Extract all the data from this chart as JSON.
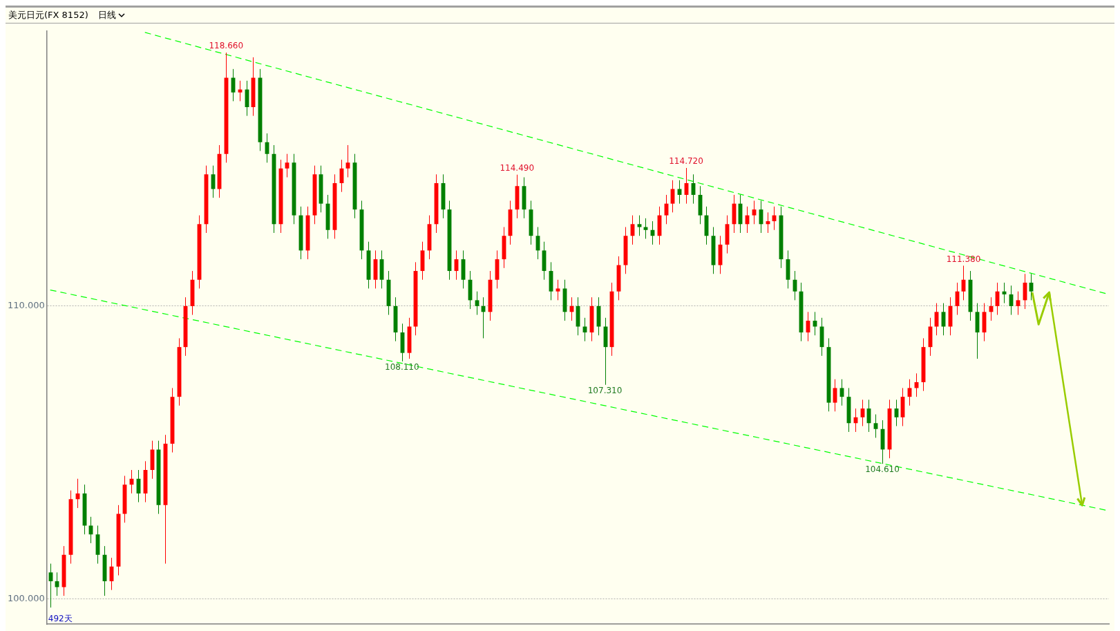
{
  "chart_data": {
    "type": "candlestick",
    "title": "美元日元(FX 8152)",
    "subtitle": "日线",
    "annotations": [
      {
        "text": "118.660",
        "y": 118.66
      },
      {
        "text": "114.490",
        "y": 114.49
      },
      {
        "text": "114.720",
        "y": 114.72
      },
      {
        "text": "111.380",
        "y": 111.38
      },
      {
        "text": "108.110",
        "y": 108.11
      },
      {
        "text": "107.310",
        "y": 107.31
      },
      {
        "text": "104.610",
        "y": 104.61
      },
      "492天"
    ],
    "categories": [
      null,
      null,
      null,
      null,
      null,
      null,
      null,
      null,
      null,
      null,
      null,
      null,
      null,
      null,
      null,
      null,
      null,
      null,
      null,
      null,
      null,
      null,
      null,
      null,
      null,
      null,
      null,
      null,
      null,
      null,
      null,
      null,
      null,
      null,
      null,
      null,
      null,
      null,
      null,
      null,
      null,
      null,
      null,
      null,
      null,
      null,
      null,
      null,
      null,
      null,
      null,
      null,
      null,
      null,
      null,
      null,
      null,
      null,
      null,
      null,
      null,
      null,
      null,
      null,
      null,
      null,
      null,
      null,
      null,
      null,
      null,
      null,
      null,
      null,
      null,
      null,
      null,
      null,
      null,
      null,
      null,
      null,
      null,
      null,
      null,
      null,
      null,
      null,
      null,
      null,
      null,
      null,
      null,
      null,
      null,
      null,
      null,
      null,
      null,
      null,
      null,
      null,
      null,
      null,
      null,
      null,
      null,
      null,
      null,
      null,
      null,
      null,
      null,
      null,
      null,
      null,
      null,
      null,
      null,
      null,
      null,
      null,
      null,
      null,
      null,
      null,
      null,
      null,
      null,
      null,
      null,
      null,
      null,
      null,
      null,
      null,
      null,
      null,
      null,
      null,
      null,
      null,
      null,
      null,
      null,
      null,
      null,
      null,
      null,
      null,
      null,
      null,
      null,
      null,
      null,
      null,
      null
    ],
    "ohlc": [
      [
        100.9,
        101.2,
        99.7,
        100.6
      ],
      [
        100.6,
        100.9,
        100.1,
        100.4
      ],
      [
        100.4,
        101.8,
        100.1,
        101.5
      ],
      [
        101.5,
        103.7,
        101.2,
        103.4
      ],
      [
        103.4,
        104.1,
        103.1,
        103.6
      ],
      [
        103.6,
        103.9,
        102.2,
        102.5
      ],
      [
        102.5,
        102.8,
        101.9,
        102.2
      ],
      [
        102.2,
        102.5,
        101.2,
        101.5
      ],
      [
        101.5,
        101.8,
        100.1,
        100.6
      ],
      [
        100.6,
        101.4,
        100.3,
        101.1
      ],
      [
        101.1,
        103.2,
        100.8,
        102.9
      ],
      [
        102.9,
        104.2,
        102.6,
        103.9
      ],
      [
        103.9,
        104.4,
        103.6,
        104.1
      ],
      [
        104.1,
        104.4,
        103.3,
        103.6
      ],
      [
        103.6,
        104.7,
        103.3,
        104.4
      ],
      [
        104.4,
        105.4,
        104.1,
        105.1
      ],
      [
        105.1,
        105.4,
        102.9,
        103.2
      ],
      [
        103.2,
        105.6,
        101.2,
        105.3
      ],
      [
        105.3,
        107.2,
        105.0,
        106.9
      ],
      [
        106.9,
        108.9,
        106.6,
        108.6
      ],
      [
        108.6,
        110.3,
        108.3,
        110.0
      ],
      [
        110.0,
        111.2,
        109.7,
        110.9
      ],
      [
        110.9,
        113.1,
        110.6,
        112.8
      ],
      [
        112.8,
        114.8,
        112.5,
        114.5
      ],
      [
        114.5,
        114.8,
        113.7,
        114.0
      ],
      [
        114.0,
        115.5,
        113.7,
        115.2
      ],
      [
        115.2,
        118.66,
        114.9,
        117.8
      ],
      [
        117.8,
        118.1,
        117.0,
        117.3
      ],
      [
        117.3,
        117.7,
        117.0,
        117.4
      ],
      [
        117.4,
        117.7,
        116.5,
        116.8
      ],
      [
        116.8,
        118.5,
        116.5,
        117.8
      ],
      [
        117.8,
        118.1,
        115.3,
        115.6
      ],
      [
        115.6,
        115.9,
        114.9,
        115.2
      ],
      [
        115.2,
        115.5,
        112.5,
        112.8
      ],
      [
        112.8,
        115.0,
        112.5,
        114.7
      ],
      [
        114.7,
        115.2,
        114.4,
        114.9
      ],
      [
        114.9,
        115.2,
        112.8,
        113.1
      ],
      [
        113.1,
        113.4,
        111.6,
        111.9
      ],
      [
        111.9,
        113.4,
        111.6,
        113.1
      ],
      [
        113.1,
        114.8,
        112.8,
        114.5
      ],
      [
        114.5,
        114.8,
        113.2,
        113.5
      ],
      [
        113.5,
        113.8,
        112.3,
        112.6
      ],
      [
        112.6,
        114.5,
        112.3,
        114.2
      ],
      [
        114.2,
        115.0,
        113.9,
        114.7
      ],
      [
        114.7,
        115.5,
        114.4,
        114.9
      ],
      [
        114.9,
        115.2,
        113.0,
        113.3
      ],
      [
        113.3,
        113.6,
        111.6,
        111.9
      ],
      [
        111.9,
        112.2,
        110.6,
        110.9
      ],
      [
        110.9,
        111.9,
        110.6,
        111.6
      ],
      [
        111.6,
        111.9,
        110.6,
        110.9
      ],
      [
        110.9,
        111.2,
        109.7,
        110.0
      ],
      [
        110.0,
        110.3,
        108.8,
        109.1
      ],
      [
        109.1,
        109.4,
        108.11,
        108.4
      ],
      [
        108.4,
        109.6,
        108.2,
        109.3
      ],
      [
        109.3,
        111.5,
        109.0,
        111.2
      ],
      [
        111.2,
        112.2,
        110.9,
        111.9
      ],
      [
        111.9,
        113.1,
        111.6,
        112.8
      ],
      [
        112.8,
        114.5,
        112.5,
        114.2
      ],
      [
        114.2,
        114.5,
        113.0,
        113.3
      ],
      [
        113.3,
        113.6,
        110.9,
        111.2
      ],
      [
        111.2,
        111.9,
        110.9,
        111.6
      ],
      [
        111.6,
        111.9,
        110.6,
        110.9
      ],
      [
        110.9,
        111.2,
        109.9,
        110.2
      ],
      [
        110.2,
        110.5,
        109.7,
        110.0
      ],
      [
        110.0,
        110.3,
        108.9,
        109.8
      ],
      [
        109.8,
        111.2,
        109.5,
        110.9
      ],
      [
        110.9,
        111.9,
        110.6,
        111.6
      ],
      [
        111.6,
        112.7,
        111.3,
        112.4
      ],
      [
        112.4,
        113.6,
        112.1,
        113.3
      ],
      [
        113.3,
        114.49,
        113.0,
        114.1
      ],
      [
        114.1,
        114.4,
        113.0,
        113.3
      ],
      [
        113.3,
        113.6,
        112.1,
        112.4
      ],
      [
        112.4,
        112.7,
        111.6,
        111.9
      ],
      [
        111.9,
        112.2,
        110.9,
        111.2
      ],
      [
        111.2,
        111.5,
        110.2,
        110.5
      ],
      [
        110.5,
        110.9,
        110.2,
        110.6
      ],
      [
        110.6,
        110.9,
        109.5,
        109.8
      ],
      [
        109.8,
        110.3,
        109.5,
        110.0
      ],
      [
        110.0,
        110.3,
        109.0,
        109.3
      ],
      [
        109.3,
        109.6,
        108.8,
        109.1
      ],
      [
        109.1,
        110.3,
        108.8,
        110.0
      ],
      [
        110.0,
        110.3,
        109.0,
        109.3
      ],
      [
        109.3,
        109.6,
        107.31,
        108.6
      ],
      [
        108.6,
        110.8,
        108.3,
        110.5
      ],
      [
        110.5,
        111.7,
        110.2,
        111.4
      ],
      [
        111.4,
        112.7,
        111.1,
        112.4
      ],
      [
        112.4,
        113.1,
        112.1,
        112.8
      ],
      [
        112.8,
        113.1,
        112.4,
        112.7
      ],
      [
        112.7,
        113.0,
        112.3,
        112.6
      ],
      [
        112.6,
        112.9,
        112.1,
        112.4
      ],
      [
        112.4,
        113.4,
        112.1,
        113.1
      ],
      [
        113.1,
        113.8,
        112.8,
        113.5
      ],
      [
        113.5,
        114.3,
        113.2,
        114.0
      ],
      [
        114.0,
        114.3,
        113.5,
        113.8
      ],
      [
        113.8,
        114.72,
        113.5,
        114.2
      ],
      [
        114.2,
        114.5,
        113.5,
        113.8
      ],
      [
        113.8,
        114.1,
        112.8,
        113.1
      ],
      [
        113.1,
        113.4,
        112.1,
        112.4
      ],
      [
        112.4,
        112.7,
        111.1,
        111.4
      ],
      [
        111.4,
        112.4,
        111.1,
        112.1
      ],
      [
        112.1,
        113.1,
        111.8,
        112.8
      ],
      [
        112.8,
        113.8,
        112.5,
        113.5
      ],
      [
        113.5,
        113.8,
        112.5,
        112.8
      ],
      [
        112.8,
        113.4,
        112.5,
        113.1
      ],
      [
        113.1,
        113.6,
        112.8,
        113.3
      ],
      [
        113.3,
        113.6,
        112.5,
        112.8
      ],
      [
        112.8,
        113.2,
        112.5,
        112.9
      ],
      [
        112.9,
        113.4,
        112.6,
        113.1
      ],
      [
        113.1,
        113.4,
        111.3,
        111.6
      ],
      [
        111.6,
        111.9,
        110.6,
        110.9
      ],
      [
        110.9,
        111.2,
        110.2,
        110.5
      ],
      [
        110.5,
        110.8,
        108.8,
        109.1
      ],
      [
        109.1,
        109.8,
        108.8,
        109.5
      ],
      [
        109.5,
        109.8,
        109.0,
        109.3
      ],
      [
        109.3,
        109.6,
        108.3,
        108.6
      ],
      [
        108.6,
        108.9,
        106.4,
        106.7
      ],
      [
        106.7,
        107.5,
        106.4,
        107.2
      ],
      [
        107.2,
        107.5,
        106.6,
        106.9
      ],
      [
        106.9,
        107.2,
        105.7,
        106.0
      ],
      [
        106.0,
        106.5,
        105.7,
        106.2
      ],
      [
        106.2,
        106.8,
        105.9,
        106.5
      ],
      [
        106.5,
        106.8,
        105.7,
        106.0
      ],
      [
        106.0,
        106.3,
        105.5,
        105.8
      ],
      [
        105.8,
        106.1,
        104.61,
        105.1
      ],
      [
        105.1,
        106.8,
        104.8,
        106.5
      ],
      [
        106.5,
        106.8,
        105.9,
        106.2
      ],
      [
        106.2,
        107.2,
        105.9,
        106.9
      ],
      [
        106.9,
        107.5,
        106.6,
        107.2
      ],
      [
        107.2,
        107.7,
        106.9,
        107.4
      ],
      [
        107.4,
        108.9,
        107.1,
        108.6
      ],
      [
        108.6,
        109.6,
        108.3,
        109.3
      ],
      [
        109.3,
        110.1,
        109.0,
        109.8
      ],
      [
        109.8,
        110.1,
        109.0,
        109.3
      ],
      [
        109.3,
        110.3,
        109.0,
        110.0
      ],
      [
        110.0,
        110.8,
        109.7,
        110.5
      ],
      [
        110.5,
        111.38,
        110.2,
        110.9
      ],
      [
        110.9,
        111.2,
        109.5,
        109.8
      ],
      [
        109.8,
        110.1,
        108.2,
        109.1
      ],
      [
        109.1,
        110.1,
        108.8,
        109.8
      ],
      [
        109.8,
        110.3,
        109.5,
        110.0
      ],
      [
        110.0,
        110.8,
        109.7,
        110.5
      ],
      [
        110.5,
        110.8,
        110.1,
        110.4
      ],
      [
        110.4,
        110.7,
        109.7,
        110.0
      ],
      [
        110.0,
        110.5,
        109.7,
        110.2
      ],
      [
        110.2,
        111.1,
        109.9,
        110.8
      ],
      [
        110.8,
        111.1,
        110.2,
        110.5
      ],
      null,
      null,
      null,
      null,
      null,
      null,
      null,
      null,
      null,
      null,
      null
    ],
    "colors": [
      "#008000",
      "#008000",
      "#ff0000",
      "#ff0000",
      "#ff0000",
      "#008000",
      "#008000",
      "#008000",
      "#008000",
      "#ff0000",
      "#ff0000",
      "#ff0000",
      "#ff0000",
      "#008000",
      "#ff0000",
      "#ff0000",
      "#008000",
      "#ff0000",
      "#ff0000",
      "#ff0000",
      "#ff0000",
      "#ff0000",
      "#ff0000",
      "#ff0000",
      "#008000",
      "#ff0000",
      "#ff0000",
      "#008000",
      "#ff0000",
      "#008000",
      "#ff0000",
      "#008000",
      "#008000",
      "#008000",
      "#ff0000",
      "#ff0000",
      "#008000",
      "#008000",
      "#ff0000",
      "#ff0000",
      "#008000",
      "#008000",
      "#ff0000",
      "#ff0000",
      "#ff0000",
      "#008000",
      "#008000",
      "#008000",
      "#ff0000",
      "#008000",
      "#008000",
      "#008000",
      "#008000",
      "#ff0000",
      "#ff0000",
      "#ff0000",
      "#ff0000",
      "#ff0000",
      "#008000",
      "#008000",
      "#ff0000",
      "#008000",
      "#008000",
      "#008000",
      "#008000",
      "#ff0000",
      "#ff0000",
      "#ff0000",
      "#ff0000",
      "#ff0000",
      "#008000",
      "#008000",
      "#008000",
      "#008000",
      "#008000",
      "#ff0000",
      "#008000",
      "#ff0000",
      "#008000",
      "#008000",
      "#ff0000",
      "#008000",
      "#008000",
      "#ff0000",
      "#ff0000",
      "#ff0000",
      "#ff0000",
      "#008000",
      "#008000",
      "#008000",
      "#ff0000",
      "#ff0000",
      "#ff0000",
      "#008000",
      "#ff0000",
      "#008000",
      "#008000",
      "#008000",
      "#008000",
      "#ff0000",
      "#ff0000",
      "#ff0000",
      "#008000",
      "#ff0000",
      "#ff0000",
      "#008000",
      "#ff0000",
      "#ff0000",
      "#008000",
      "#008000",
      "#008000",
      "#008000",
      "#ff0000",
      "#008000",
      "#008000",
      "#008000",
      "#ff0000",
      "#008000",
      "#008000",
      "#ff0000",
      "#ff0000",
      "#008000",
      "#008000",
      "#008000",
      "#ff0000",
      "#008000",
      "#ff0000",
      "#ff0000",
      "#ff0000",
      "#ff0000",
      "#ff0000",
      "#ff0000",
      "#008000",
      "#ff0000",
      "#ff0000",
      "#ff0000",
      "#008000",
      "#008000",
      "#ff0000",
      "#ff0000",
      "#ff0000",
      "#008000",
      "#008000",
      "#ff0000",
      "#ff0000",
      "#008000",
      null,
      null,
      null,
      null,
      null,
      null,
      null,
      null,
      null,
      null,
      null
    ],
    "series": [
      {
        "type": "line",
        "color": "#00ff00",
        "line_style": "dashed",
        "values": [
          null,
          null,
          null,
          null,
          null,
          null,
          null,
          null,
          null,
          null,
          null,
          null,
          null,
          null,
          119.35,
          null,
          null,
          null,
          null,
          null,
          null,
          null,
          null,
          null,
          null,
          null,
          null,
          null,
          null,
          null,
          null,
          null,
          null,
          null,
          null,
          null,
          null,
          null,
          null,
          null,
          null,
          null,
          null,
          null,
          null,
          null,
          null,
          null,
          null,
          null,
          null,
          null,
          null,
          null,
          null,
          null,
          null,
          null,
          null,
          null,
          null,
          null,
          null,
          null,
          null,
          null,
          null,
          null,
          null,
          null,
          null,
          null,
          null,
          null,
          null,
          null,
          null,
          null,
          null,
          null,
          null,
          null,
          null,
          null,
          null,
          null,
          null,
          null,
          null,
          null,
          null,
          null,
          null,
          null,
          null,
          null,
          null,
          null,
          null,
          null,
          null,
          null,
          null,
          null,
          null,
          null,
          null,
          null,
          null,
          null,
          null,
          null,
          null,
          null,
          null,
          null,
          null,
          null,
          null,
          null,
          null,
          null,
          null,
          null,
          null,
          null,
          null,
          null,
          null,
          null,
          null,
          null,
          null,
          null,
          null,
          null,
          null,
          null,
          null,
          null,
          null,
          null,
          null,
          null,
          null,
          null,
          null,
          null,
          null,
          null,
          null,
          null,
          null,
          null,
          null,
          null,
          110.43
        ]
      },
      {
        "type": "line",
        "color": "#00ff00",
        "line_style": "dashed",
        "values": [
          110.55,
          null,
          null,
          null,
          null,
          null,
          null,
          null,
          null,
          null,
          null,
          null,
          null,
          null,
          null,
          null,
          null,
          null,
          null,
          null,
          null,
          null,
          null,
          null,
          null,
          null,
          null,
          null,
          null,
          null,
          null,
          null,
          null,
          null,
          null,
          null,
          null,
          null,
          null,
          null,
          null,
          null,
          null,
          null,
          null,
          null,
          null,
          null,
          null,
          null,
          null,
          null,
          null,
          null,
          null,
          null,
          null,
          null,
          null,
          null,
          null,
          null,
          null,
          null,
          null,
          null,
          null,
          null,
          null,
          null,
          null,
          null,
          null,
          null,
          null,
          null,
          null,
          null,
          null,
          null,
          null,
          null,
          null,
          null,
          null,
          null,
          null,
          null,
          null,
          null,
          null,
          null,
          null,
          null,
          null,
          null,
          null,
          null,
          null,
          null,
          null,
          null,
          null,
          null,
          null,
          null,
          null,
          null,
          null,
          null,
          null,
          null,
          null,
          null,
          null,
          null,
          null,
          null,
          null,
          null,
          null,
          null,
          null,
          null,
          null,
          null,
          null,
          null,
          null,
          null,
          null,
          null,
          null,
          null,
          null,
          null,
          null,
          null,
          null,
          null,
          null,
          null,
          null,
          null,
          null,
          null,
          null,
          null,
          null,
          null,
          null,
          null,
          null,
          null,
          null,
          null,
          103.03
        ]
      }
    ],
    "ylim": [
      99.13,
      119.4
    ],
    "yticks": [
      {
        "value": 110,
        "label": "110.000"
      },
      {
        "value": 100,
        "label": "100.000"
      }
    ],
    "tick_labels": "y",
    "grid": "y"
  }
}
